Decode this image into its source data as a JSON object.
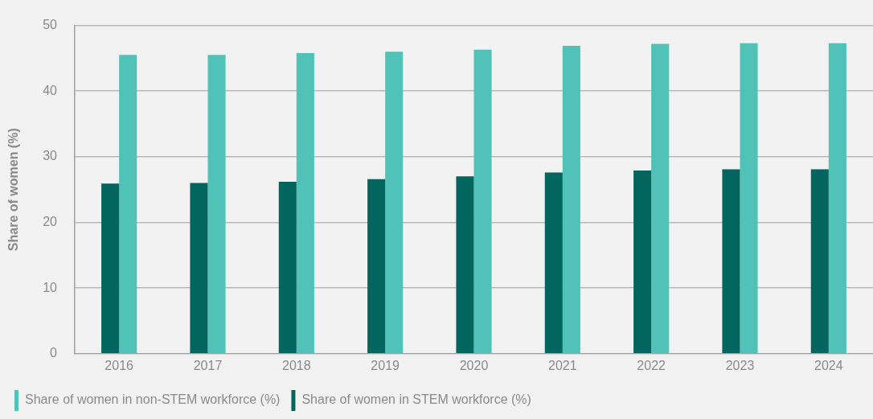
{
  "chart_data": {
    "type": "bar",
    "ylabel": "Share of women (%)",
    "categories": [
      "2016",
      "2017",
      "2018",
      "2019",
      "2020",
      "2021",
      "2022",
      "2023",
      "2024"
    ],
    "series": [
      {
        "name": "Share of women in STEM workforce (%)",
        "color": "#02665e",
        "values": [
          25.9,
          26.0,
          26.2,
          26.6,
          27.0,
          27.6,
          27.9,
          28.1,
          28.1
        ]
      },
      {
        "name": "Share of women in non-STEM workforce (%)",
        "color": "#50c2b7",
        "values": [
          45.5,
          45.5,
          45.8,
          46.0,
          46.3,
          46.9,
          47.2,
          47.3,
          47.3
        ]
      }
    ],
    "ylim": [
      0,
      50
    ],
    "yticks": [
      0,
      10,
      20,
      30,
      40,
      50
    ],
    "grid": "y",
    "legend": "bottom left"
  }
}
